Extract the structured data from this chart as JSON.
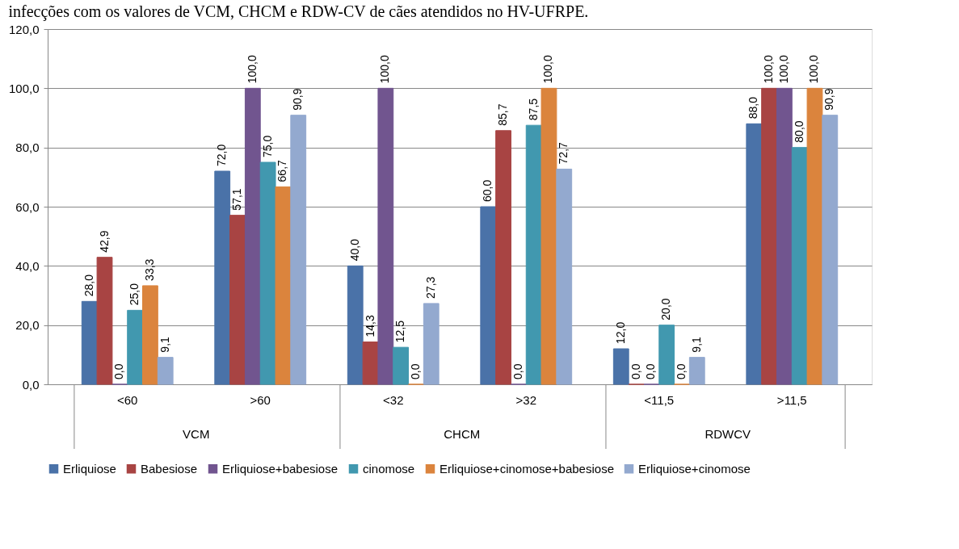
{
  "chart_data": {
    "type": "bar",
    "title": "infecções com os valores de VCM, CHCM e RDW-CV de cães atendidos no HV-UFRPE.",
    "categories": [
      "<60",
      ">60",
      "<32",
      ">32",
      "<11,5",
      ">11,5"
    ],
    "annotations": [
      "VCM",
      "CHCM",
      "RDWCV"
    ],
    "ylim": [
      0,
      120
    ],
    "yticks": [
      {
        "value": 0,
        "label": "0,0"
      },
      {
        "value": 20,
        "label": "20,0"
      },
      {
        "value": 40,
        "label": "40,0"
      },
      {
        "value": 60,
        "label": "60,0"
      },
      {
        "value": 80,
        "label": "80,0"
      },
      {
        "value": 100,
        "label": "100,0"
      },
      {
        "value": 120,
        "label": "120,0"
      }
    ],
    "grid": "y",
    "legend": "bottom",
    "series": [
      {
        "name": "Erliquiose",
        "color": "#4a72a8",
        "values": [
          28,
          72,
          40,
          60,
          12,
          88
        ],
        "value_labels": [
          "28,0",
          "72,0",
          "40,0",
          "60,0",
          "12,0",
          "88,0"
        ]
      },
      {
        "name": "Babesiose",
        "color": "#a84443",
        "values": [
          42.9,
          57.1,
          14.3,
          85.7,
          0,
          100
        ],
        "value_labels": [
          "42,9",
          "57,1",
          "14,3",
          "85,7",
          "0,0",
          "100,0"
        ]
      },
      {
        "name": "Erliquiose+babesiose",
        "color": "#71558f",
        "values": [
          0,
          100,
          100,
          0,
          0,
          100
        ],
        "value_labels": [
          "0,0",
          "100,0",
          "100,0",
          "0,0",
          "0,0",
          "100,0"
        ]
      },
      {
        "name": "cinomose",
        "color": "#4198af",
        "values": [
          25,
          75,
          12.5,
          87.5,
          20,
          80
        ],
        "value_labels": [
          "25,0",
          "75,0",
          "12,5",
          "87,5",
          "20,0",
          "80,0"
        ]
      },
      {
        "name": "Erliquiose+cinomose+babesiose",
        "color": "#db843d",
        "values": [
          33.3,
          66.7,
          0,
          100,
          0,
          100
        ],
        "value_labels": [
          "33,3",
          "66,7",
          "0,0",
          "100,0",
          "0,0",
          "100,0"
        ]
      },
      {
        "name": "Erliquiose+cinomose",
        "color": "#93a9cf",
        "values": [
          9.1,
          90.9,
          27.3,
          72.7,
          9.1,
          90.9
        ],
        "value_labels": [
          "9,1",
          "90,9",
          "27,3",
          "72,7",
          "9,1",
          "90,9"
        ]
      }
    ]
  }
}
